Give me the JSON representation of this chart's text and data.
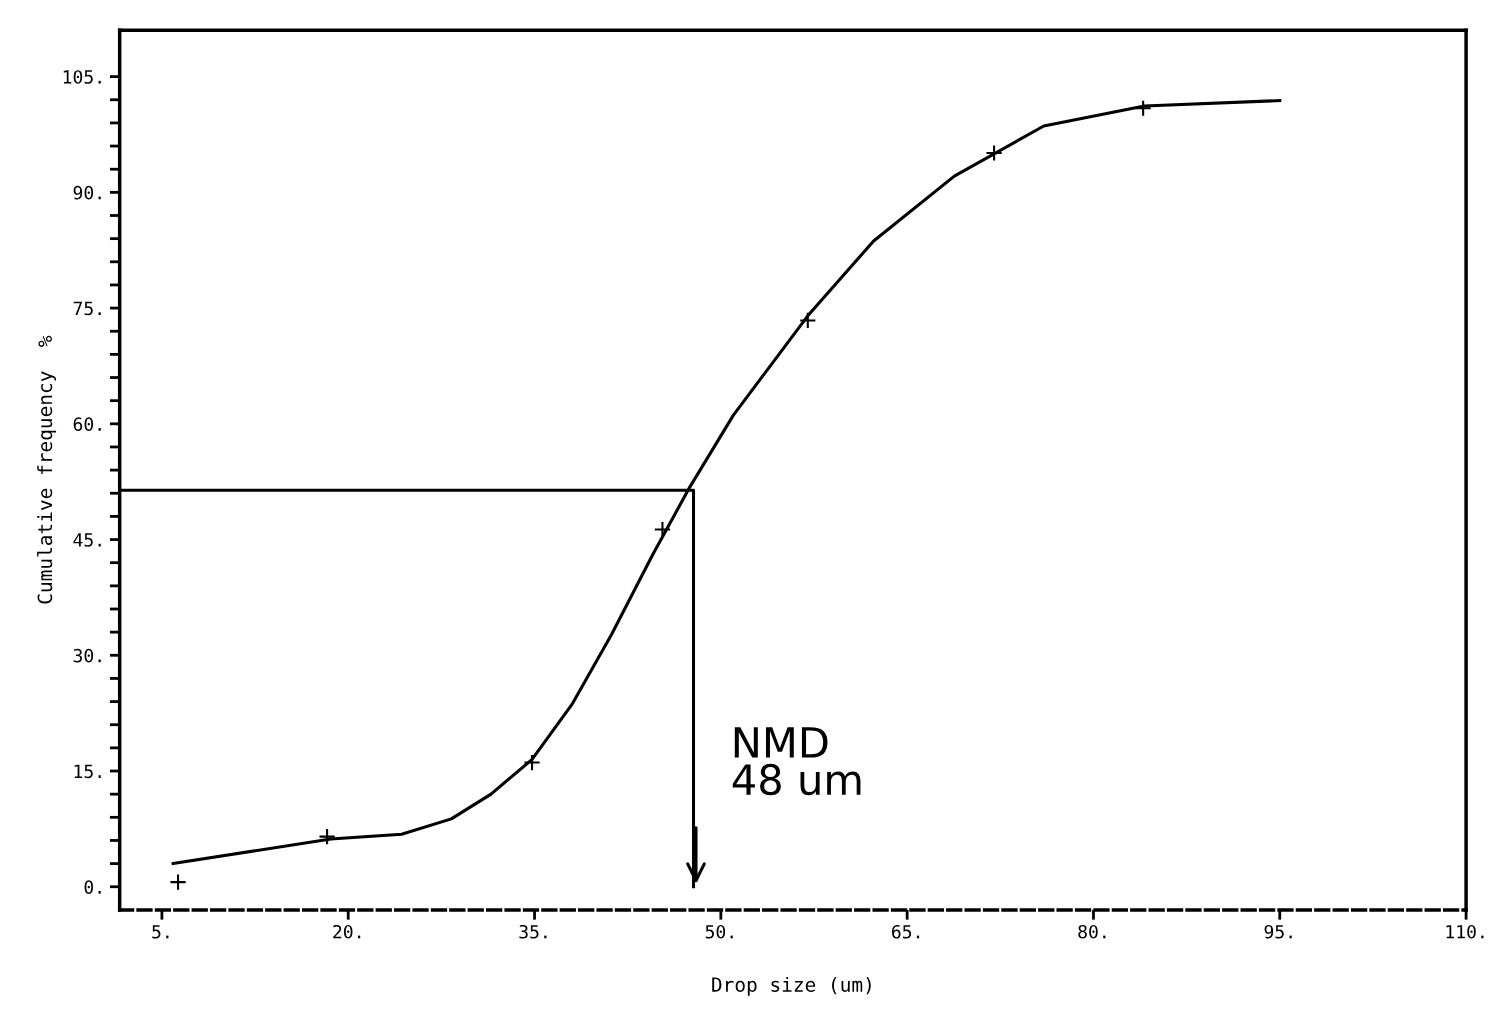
{
  "chart_data": {
    "type": "line",
    "xlabel": "Drop size (um)",
    "ylabel": "Cumulative frequency  %",
    "xlim": [
      1.6,
      110
    ],
    "ylim": [
      -3,
      111
    ],
    "xticks": [
      {
        "value": 5,
        "label": "5."
      },
      {
        "value": 20,
        "label": "20."
      },
      {
        "value": 35,
        "label": "35."
      },
      {
        "value": 50,
        "label": "50."
      },
      {
        "value": 65,
        "label": "65."
      },
      {
        "value": 80,
        "label": "80."
      },
      {
        "value": 95,
        "label": "95."
      },
      {
        "value": 110,
        "label": "110."
      }
    ],
    "yticks": [
      {
        "value": 0,
        "label": "0."
      },
      {
        "value": 3,
        "label": null
      },
      {
        "value": 6,
        "label": null
      },
      {
        "value": 9,
        "label": null
      },
      {
        "value": 12,
        "label": null
      },
      {
        "value": 15,
        "label": "15."
      },
      {
        "value": 18,
        "label": null
      },
      {
        "value": 21,
        "label": null
      },
      {
        "value": 24,
        "label": null
      },
      {
        "value": 27,
        "label": null
      },
      {
        "value": 30,
        "label": "30."
      },
      {
        "value": 33,
        "label": null
      },
      {
        "value": 36,
        "label": null
      },
      {
        "value": 39,
        "label": null
      },
      {
        "value": 42,
        "label": null
      },
      {
        "value": 45,
        "label": "45."
      },
      {
        "value": 48,
        "label": null
      },
      {
        "value": 51,
        "label": null
      },
      {
        "value": 54,
        "label": null
      },
      {
        "value": 57,
        "label": null
      },
      {
        "value": 60,
        "label": "60."
      },
      {
        "value": 63,
        "label": null
      },
      {
        "value": 66,
        "label": null
      },
      {
        "value": 69,
        "label": null
      },
      {
        "value": 72,
        "label": null
      },
      {
        "value": 75,
        "label": "75."
      },
      {
        "value": 78,
        "label": null
      },
      {
        "value": 81,
        "label": null
      },
      {
        "value": 84,
        "label": null
      },
      {
        "value": 87,
        "label": null
      },
      {
        "value": 90,
        "label": "90."
      },
      {
        "value": 93,
        "label": null
      },
      {
        "value": 96,
        "label": null
      },
      {
        "value": 99,
        "label": null
      },
      {
        "value": 102,
        "label": null
      },
      {
        "value": 105,
        "label": "105."
      }
    ],
    "grid": false,
    "legend": false,
    "series": [
      {
        "color": "#000000",
        "x": [
          5.9,
          18.6,
          24.3,
          28.3,
          31.5,
          34.8,
          38.0,
          41.2,
          44.5,
          47.5,
          51.0,
          57.0,
          62.3,
          68.8,
          76.0,
          84.1,
          95.0
        ],
        "values": [
          3.0,
          6.2,
          6.8,
          8.8,
          12.0,
          16.5,
          23.6,
          32.7,
          43.0,
          51.8,
          61.1,
          74.0,
          83.7,
          92.1,
          98.6,
          101.2,
          101.9
        ]
      },
      {
        "type": "scatter",
        "marker": "cross",
        "color": "#000000",
        "x": [
          6.3,
          18.3,
          34.8,
          45.3,
          57.0,
          72.0,
          84.0
        ],
        "values": [
          0.6,
          6.5,
          16.1,
          46.3,
          73.4,
          95.1,
          100.9
        ]
      },
      {
        "color": "#000000",
        "x": [
          1.6,
          47.8,
          47.8
        ],
        "values": [
          51.4,
          51.4,
          0
        ]
      }
    ],
    "annotations": [
      {
        "text": "NMD\n48 um",
        "x": 48,
        "y": 0
      }
    ]
  }
}
